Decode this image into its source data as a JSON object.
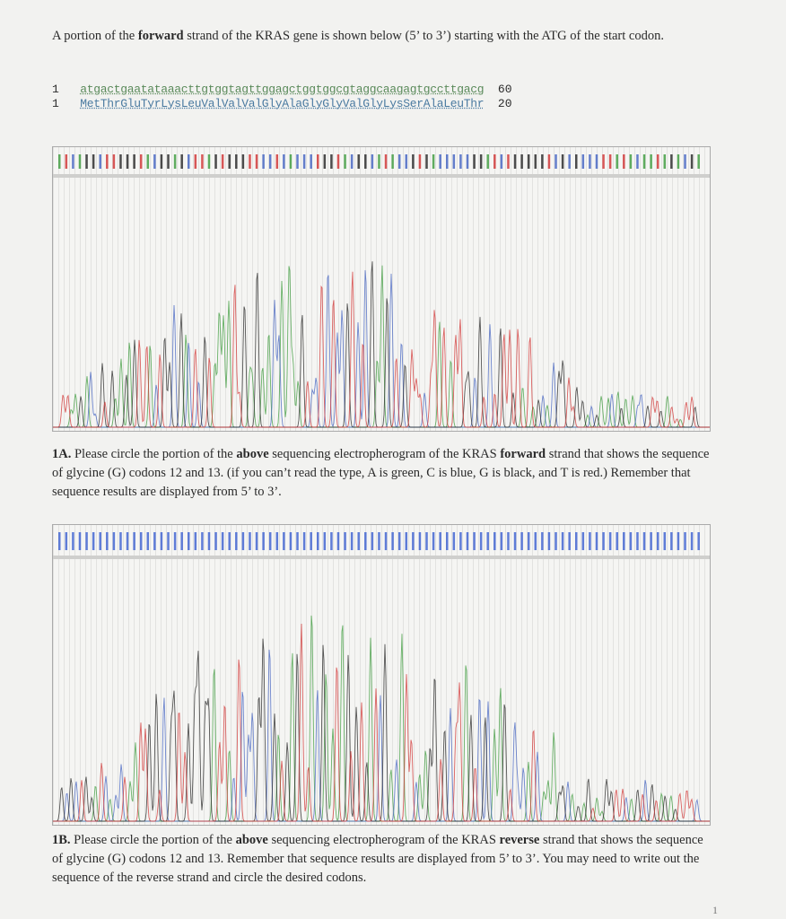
{
  "intro": [
    {
      "text": "A portion of the "
    },
    {
      "text": "forward",
      "bold": true
    },
    {
      "text": " strand of the KRAS gene is shown below (5’ to 3’) starting with the ATG of the start codon."
    }
  ],
  "sequence": {
    "dna": {
      "start": "1",
      "residues": "atgactgaatataaacttgtggtagttggagctggtggcgtaggcaagagtgccttgacg",
      "end": "60"
    },
    "protein": {
      "start": "1",
      "residues": "MetThrGluTyrLysLeuValValValGlyAlaGlyGlyValGlyLysSerAlaLeuThr",
      "end": "20"
    }
  },
  "question_1a": [
    {
      "text": "1A.",
      "bold": true
    },
    {
      "text": " Please circle the portion of the "
    },
    {
      "text": "above",
      "bold": true
    },
    {
      "text": " sequencing electropherogram of the KRAS "
    },
    {
      "text": "forward",
      "bold": true
    },
    {
      "text": " strand that shows the sequence of glycine (G) codons 12 and 13. (if you can’t read the type, A is green, C is blue, G is black, and T is red.) Remember that sequence results are displayed from 5’ to 3’."
    }
  ],
  "question_1b": [
    {
      "text": "1B.",
      "bold": true
    },
    {
      "text": " Please circle the portion of the "
    },
    {
      "text": "above",
      "bold": true
    },
    {
      "text": " sequencing electropherogram of the KRAS "
    },
    {
      "text": "reverse",
      "bold": true
    },
    {
      "text": " strand that shows the sequence of glycine (G) codons 12 and 13. Remember that sequence results are displayed from 5’ to 3’. You may need to write out the sequence of the reverse strand and circle the desired codons."
    }
  ],
  "page_number": "1"
}
